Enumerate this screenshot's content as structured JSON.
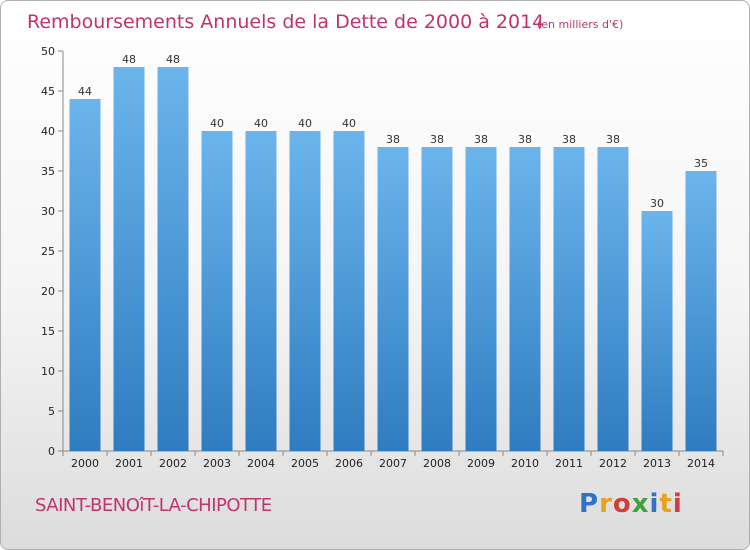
{
  "commune": "SAINT-BENOîT-LA-CHIPOTTE",
  "logo": "Proxiti",
  "chart_data": {
    "type": "bar",
    "title": "Remboursements Annuels de la Dette de 2000 à 2014",
    "subtitle": "(en milliers d'€)",
    "categories": [
      "2000",
      "2001",
      "2002",
      "2003",
      "2004",
      "2005",
      "2006",
      "2007",
      "2008",
      "2009",
      "2010",
      "2011",
      "2012",
      "2013",
      "2014"
    ],
    "values": [
      44,
      48,
      48,
      40,
      40,
      40,
      40,
      38,
      38,
      38,
      38,
      38,
      38,
      30,
      35
    ],
    "ylim": [
      0,
      50
    ],
    "yticks": [
      0,
      5,
      10,
      15,
      20,
      25,
      30,
      35,
      40,
      45,
      50
    ],
    "grid": false,
    "colors": {
      "bar_top": "#6cb4ec",
      "bar_bottom": "#2f7cc0",
      "title": "#c0346b"
    }
  }
}
